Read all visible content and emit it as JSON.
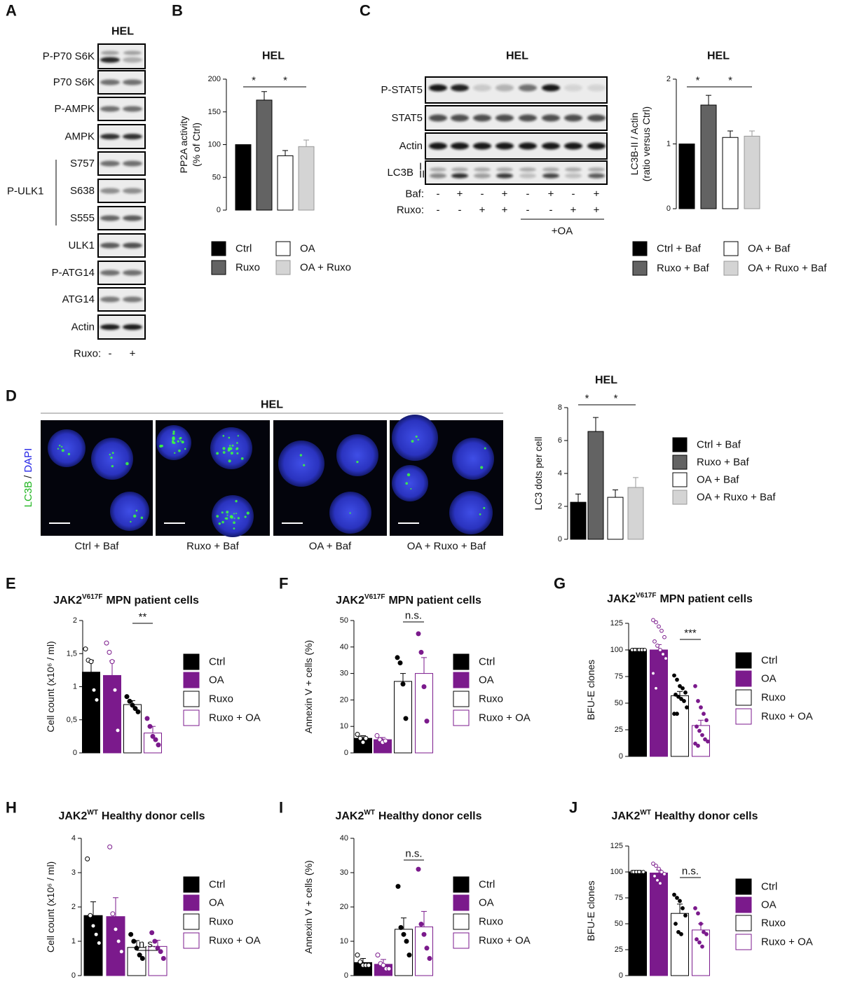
{
  "blot_a": {
    "panel": "A",
    "title": "HEL",
    "rows": [
      "P-P70 S6K",
      "P70 S6K",
      "P-AMPK",
      "AMPK",
      "S757",
      "S638",
      "S555",
      "ULK1",
      "P-ATG14",
      "ATG14",
      "Actin"
    ],
    "group_label": "P-ULK1",
    "lanes_label": "Ruxo:",
    "lanes": [
      "-",
      "+"
    ]
  },
  "blot_c": {
    "panel": "C",
    "title": "HEL",
    "rows": [
      "P-STAT5",
      "STAT5",
      "Actin",
      "LC3B"
    ],
    "lc3_forms": [
      "I",
      "II"
    ],
    "treatments": [
      {
        "label": "Baf:",
        "lanes": [
          "-",
          "+",
          "-",
          "+",
          "-",
          "+",
          "-",
          "+"
        ]
      },
      {
        "label": "Ruxo:",
        "lanes": [
          "-",
          "-",
          "+",
          "+",
          "-",
          "-",
          "+",
          "+"
        ]
      }
    ],
    "group_label": "+OA"
  },
  "micrograph_d": {
    "panel": "D",
    "title": "HEL",
    "stain": [
      "LC3B",
      "/",
      "DAPI"
    ],
    "images": [
      "Ctrl + Baf",
      "Ruxo + Baf",
      "OA + Baf",
      "OA + Ruxo + Baf"
    ]
  },
  "chart_data": [
    {
      "type": "bar",
      "panel": "B",
      "title": "HEL",
      "y_label": [
        "PP2A activity",
        "(% of Ctrl)"
      ],
      "categories": [
        "Ctrl",
        "Ruxo",
        "OA",
        "OA + Ruxo"
      ],
      "values": [
        100,
        168,
        83,
        97
      ],
      "errors": [
        0,
        13,
        8,
        10
      ],
      "colors": [
        "#000000",
        "#636363",
        "#ffffff",
        "#d4d4d4"
      ],
      "edgecolors": [
        "#000000",
        "#000000",
        "#000000",
        "#999999"
      ],
      "ylim": [
        0,
        200
      ],
      "yticks": [
        0,
        50,
        100,
        150,
        200
      ],
      "annotations": [
        "*",
        "*"
      ]
    },
    {
      "type": "bar",
      "title": "HEL",
      "y_label": [
        "LC3B-II / Actin",
        "(ratio versus Ctrl)"
      ],
      "categories": [
        "Ctrl + Baf",
        "Ruxo + Baf",
        "OA + Baf",
        "OA + Ruxo + Baf"
      ],
      "values": [
        1,
        1.6,
        1.1,
        1.12
      ],
      "errors": [
        0,
        0.15,
        0.1,
        0.08
      ],
      "colors": [
        "#000000",
        "#636363",
        "#ffffff",
        "#d4d4d4"
      ],
      "edgecolors": [
        "#000000",
        "#000000",
        "#000000",
        "#999999"
      ],
      "ylim": [
        0,
        2
      ],
      "yticks": [
        0,
        1,
        2
      ],
      "annotations": [
        "*",
        "*"
      ]
    },
    {
      "type": "bar",
      "title": "HEL",
      "y_label": "LC3 dots per cell",
      "categories": [
        "Ctrl + Baf",
        "Ruxo + Baf",
        "OA + Baf",
        "OA + Ruxo + Baf"
      ],
      "values": [
        2.25,
        6.55,
        2.55,
        3.15
      ],
      "errors": [
        0.5,
        0.85,
        0.45,
        0.6
      ],
      "colors": [
        "#000000",
        "#636363",
        "#ffffff",
        "#d4d4d4"
      ],
      "edgecolors": [
        "#000000",
        "#000000",
        "#000000",
        "#999999"
      ],
      "ylim": [
        0,
        8
      ],
      "yticks": [
        0,
        2,
        4,
        6,
        8
      ],
      "annotations": [
        "*",
        "*"
      ]
    },
    {
      "type": "bar",
      "panel": "E",
      "title": [
        "JAK2",
        "V617F",
        "MPN patient cells"
      ],
      "y_label": "Cell count (x10⁶ / ml)",
      "categories": [
        "Ctrl",
        "OA",
        "Ruxo",
        "Ruxo + OA"
      ],
      "values": [
        1.22,
        1.17,
        0.73,
        0.3
      ],
      "errors": [
        0.18,
        0.22,
        0.06,
        0.1
      ],
      "points": [
        [
          1.57,
          1.4,
          1.38,
          0.95,
          0.8
        ],
        [
          1.66,
          1.52,
          1.38,
          0.95,
          0.34
        ],
        [
          0.85,
          0.78,
          0.72,
          0.67,
          0.62
        ],
        [
          0.52,
          0.4,
          0.25,
          0.2,
          0.12
        ]
      ],
      "markers": [
        "open",
        "open",
        "filled",
        "filled"
      ],
      "colors": [
        "#000000",
        "#7b1a8c",
        "#ffffff",
        "#ffffff"
      ],
      "edgecolors": [
        "#000000",
        "#7b1a8c",
        "#000000",
        "#7b1a8c"
      ],
      "ylim": [
        0,
        2
      ],
      "yticks": [
        0,
        {
          "value": 0.5,
          "label": "0,5"
        },
        1,
        {
          "value": 1.5,
          "label": "1,5"
        },
        2
      ],
      "annotations": [
        "**"
      ]
    },
    {
      "type": "bar",
      "panel": "F",
      "title": [
        "JAK2",
        "V617F",
        "MPN patient cells"
      ],
      "y_label": "Annexin V + cells (%)",
      "categories": [
        "Ctrl",
        "OA",
        "Ruxo",
        "Ruxo + OA"
      ],
      "values": [
        5.5,
        5,
        27,
        30
      ],
      "errors": [
        1,
        0.8,
        3,
        6
      ],
      "points": [
        [
          7,
          5.5,
          4,
          5.5
        ],
        [
          6.5,
          5,
          4,
          4.5
        ],
        [
          36,
          34,
          26,
          13
        ],
        [
          45,
          38,
          25,
          12
        ]
      ],
      "markers": [
        "open",
        "open",
        "filled",
        "filled"
      ],
      "colors": [
        "#000000",
        "#7b1a8c",
        "#ffffff",
        "#ffffff"
      ],
      "edgecolors": [
        "#000000",
        "#7b1a8c",
        "#000000",
        "#7b1a8c"
      ],
      "ylim": [
        0,
        50
      ],
      "yticks": [
        0,
        10,
        20,
        30,
        40,
        50
      ],
      "annotations": [
        "n.s."
      ]
    },
    {
      "type": "bar",
      "panel": "G",
      "title": [
        "JAK2",
        "V617F",
        "MPN patient cells"
      ],
      "y_label": "BFU-E clones",
      "categories": [
        "Ctrl",
        "OA",
        "Ruxo",
        "Ruxo + OA"
      ],
      "values": [
        100,
        100,
        57,
        29
      ],
      "errors": [
        1,
        5,
        4,
        5
      ],
      "points": [
        [
          100,
          100,
          100,
          100,
          100,
          100,
          100,
          100,
          100,
          100,
          100,
          100
        ],
        [
          128,
          126,
          122,
          118,
          112,
          108,
          104,
          100,
          96,
          92,
          78,
          64
        ],
        [
          76,
          72,
          66,
          64,
          60,
          58,
          56,
          54,
          52,
          46,
          40,
          40
        ],
        [
          66,
          52,
          46,
          40,
          34,
          28,
          24,
          20,
          16,
          14,
          12,
          10
        ]
      ],
      "markers": [
        "open",
        "open",
        "filled",
        "filled"
      ],
      "colors": [
        "#000000",
        "#7b1a8c",
        "#ffffff",
        "#ffffff"
      ],
      "edgecolors": [
        "#000000",
        "#7b1a8c",
        "#000000",
        "#7b1a8c"
      ],
      "ylim": [
        0,
        125
      ],
      "yticks": [
        0,
        25,
        50,
        75,
        100,
        125
      ],
      "annotations": [
        "***"
      ]
    },
    {
      "type": "bar",
      "panel": "H",
      "title": [
        "JAK2",
        "WT",
        "Healthy donor cells"
      ],
      "y_label": "Cell count (x10⁶ / ml)",
      "categories": [
        "Ctrl",
        "OA",
        "Ruxo",
        "Ruxo + OA"
      ],
      "values": [
        1.75,
        1.72,
        0.82,
        0.85
      ],
      "errors": [
        0.4,
        0.55,
        0.2,
        0.18
      ],
      "points": [
        [
          3.4,
          1.75,
          1.45,
          1.2,
          0.95
        ],
        [
          3.75,
          1.8,
          1.35,
          1.0,
          0.7
        ],
        [
          1.2,
          1.0,
          0.8,
          0.6,
          0.5
        ],
        [
          1.25,
          1.0,
          0.8,
          0.7,
          0.5
        ]
      ],
      "markers": [
        "open",
        "open",
        "filled",
        "filled"
      ],
      "colors": [
        "#000000",
        "#7b1a8c",
        "#ffffff",
        "#ffffff"
      ],
      "edgecolors": [
        "#000000",
        "#7b1a8c",
        "#000000",
        "#7b1a8c"
      ],
      "ylim": [
        0,
        4
      ],
      "yticks": [
        0,
        1,
        2,
        3,
        4
      ],
      "annotations": [
        "n.s."
      ]
    },
    {
      "type": "bar",
      "panel": "I",
      "title": [
        "JAK2",
        "WT",
        "Healthy donor cells"
      ],
      "y_label": "Annexin V + cells (%)",
      "categories": [
        "Ctrl",
        "OA",
        "Ruxo",
        "Ruxo + OA"
      ],
      "values": [
        3.8,
        3.3,
        13.5,
        14.2
      ],
      "errors": [
        1.2,
        1.4,
        3.3,
        4.5
      ],
      "points": [
        [
          6,
          4,
          3,
          3,
          3
        ],
        [
          6,
          3.5,
          3,
          2,
          2
        ],
        [
          26,
          14,
          12,
          10,
          6
        ],
        [
          31,
          15,
          12,
          8,
          5
        ]
      ],
      "markers": [
        "open",
        "open",
        "filled",
        "filled"
      ],
      "colors": [
        "#000000",
        "#7b1a8c",
        "#ffffff",
        "#ffffff"
      ],
      "edgecolors": [
        "#000000",
        "#7b1a8c",
        "#000000",
        "#7b1a8c"
      ],
      "ylim": [
        0,
        40
      ],
      "yticks": [
        0,
        10,
        20,
        30,
        40
      ],
      "annotations": [
        "n.s."
      ]
    },
    {
      "type": "bar",
      "panel": "J",
      "title": [
        "JAK2",
        "WT",
        "Healthy donor cells"
      ],
      "y_label": "BFU-E clones",
      "categories": [
        "Ctrl",
        "OA",
        "Ruxo",
        "Ruxo + OA"
      ],
      "values": [
        100,
        99,
        60,
        44
      ],
      "errors": [
        0.5,
        3,
        9,
        6
      ],
      "points": [
        [
          100,
          100,
          100,
          100,
          100,
          100,
          100,
          100
        ],
        [
          108,
          106,
          103,
          100,
          98,
          96,
          92,
          89
        ],
        [
          78,
          75,
          72,
          65,
          58,
          50,
          42,
          40
        ],
        [
          65,
          60,
          50,
          42,
          40,
          35,
          32,
          28
        ]
      ],
      "markers": [
        "open",
        "open",
        "filled",
        "filled"
      ],
      "colors": [
        "#000000",
        "#7b1a8c",
        "#ffffff",
        "#ffffff"
      ],
      "edgecolors": [
        "#000000",
        "#7b1a8c",
        "#000000",
        "#7b1a8c"
      ],
      "ylim": [
        0,
        125
      ],
      "yticks": [
        0,
        25,
        50,
        75,
        100,
        125
      ],
      "annotations": [
        "n.s."
      ]
    }
  ]
}
